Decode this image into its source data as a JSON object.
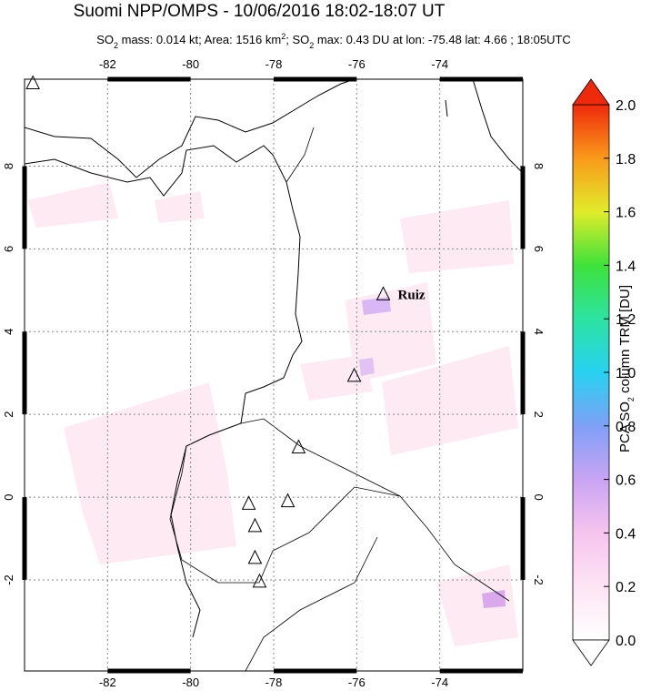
{
  "title": "Suomi NPP/OMPS - 10/06/2016 18:02-18:07 UT",
  "subtitle": [
    "SO",
    "2",
    " mass: 0.014 kt; Area: 1516 km",
    "2",
    "; SO",
    "2",
    " max: 0.43 DU at lon: -75.48 lat: 4.66 ; 18:05UTC"
  ],
  "map": {
    "xlim": [
      -84,
      -72
    ],
    "ylim": [
      -4.2,
      10.1
    ],
    "xticks": [
      -82,
      -80,
      -78,
      -76,
      -74
    ],
    "yticks": [
      8,
      6,
      4,
      2,
      0,
      -2
    ],
    "volcanoes": [
      {
        "lon": -83.8,
        "lat": 10.0
      },
      {
        "lon": -75.36,
        "lat": 4.9,
        "label": "Ruiz"
      },
      {
        "lon": -76.06,
        "lat": 2.93
      },
      {
        "lon": -77.4,
        "lat": 1.2
      },
      {
        "lon": -77.66,
        "lat": -0.1
      },
      {
        "lon": -78.6,
        "lat": -0.16
      },
      {
        "lon": -78.45,
        "lat": -0.7
      },
      {
        "lon": -78.45,
        "lat": -1.47
      },
      {
        "lon": -78.34,
        "lat": -2.04
      }
    ]
  },
  "colorbar": {
    "label": [
      "PCA SO",
      "2",
      " column TRM [DU]"
    ],
    "lim": [
      0,
      2
    ],
    "ticks": [
      {
        "value": 0,
        "label": "0.0"
      },
      {
        "value": 0.2,
        "label": "0.2"
      },
      {
        "value": 0.4,
        "label": "0.4"
      },
      {
        "value": 0.6,
        "label": "0.6"
      },
      {
        "value": 0.8,
        "label": "0.8"
      },
      {
        "value": 1.0,
        "label": "1.0"
      },
      {
        "value": 1.2,
        "label": "1.2"
      },
      {
        "value": 1.4,
        "label": "1.4"
      },
      {
        "value": 1.6,
        "label": "1.6"
      },
      {
        "value": 1.8,
        "label": "1.8"
      },
      {
        "value": 2.0,
        "label": "2.0"
      }
    ]
  }
}
